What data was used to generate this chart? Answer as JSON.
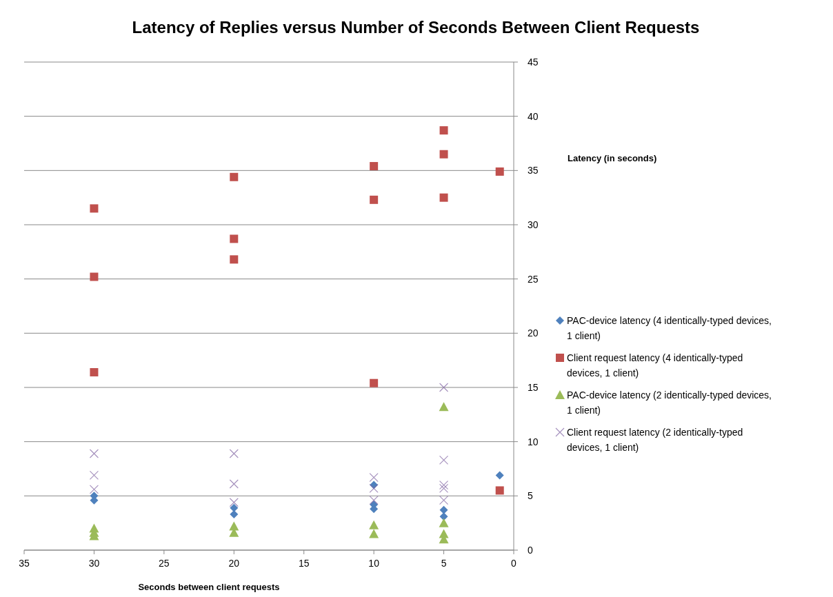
{
  "chart_data": {
    "type": "scatter",
    "title": "Latency of Replies versus Number of Seconds Between Client Requests",
    "xlabel": "Seconds between client  requests",
    "ylabel": "Latency (in seconds)",
    "xlim": [
      35,
      0
    ],
    "xticks": [
      35,
      30,
      25,
      20,
      15,
      10,
      5,
      0
    ],
    "ylim": [
      0,
      45
    ],
    "yticks": [
      0,
      5,
      10,
      15,
      20,
      25,
      30,
      35,
      40,
      45
    ],
    "grid": "y",
    "legend": "right",
    "series": [
      {
        "name": "PAC-device latency (4 identically-typed devices, 1 client)",
        "color": "#4f81bd",
        "marker": "diamond",
        "x": [
          30,
          30,
          20,
          20,
          10,
          10,
          10,
          5,
          5,
          1
        ],
        "values": [
          5.0,
          4.6,
          3.9,
          3.3,
          6.0,
          4.2,
          3.8,
          3.7,
          3.1,
          6.9
        ]
      },
      {
        "name": "Client request latency (4 identically-typed  devices, 1 client)",
        "color": "#c0504d",
        "marker": "square",
        "x": [
          30,
          30,
          30,
          20,
          20,
          20,
          10,
          10,
          10,
          5,
          5,
          5,
          1,
          1
        ],
        "values": [
          31.5,
          25.2,
          16.4,
          34.4,
          28.7,
          26.8,
          35.4,
          32.3,
          15.4,
          38.7,
          36.5,
          32.5,
          34.9,
          5.5
        ]
      },
      {
        "name": "PAC-device latency (2 identically-typed devices, 1 client)",
        "color": "#9bbb59",
        "marker": "triangle",
        "x": [
          30,
          30,
          30,
          20,
          20,
          10,
          10,
          5,
          5,
          5,
          5
        ],
        "values": [
          2.0,
          1.6,
          1.3,
          2.2,
          1.6,
          2.3,
          1.5,
          13.2,
          2.5,
          1.5,
          1.0
        ]
      },
      {
        "name": "Client request latency (2 identically-typed devices, 1 client)",
        "color": "#8064a2",
        "marker": "cross",
        "x": [
          30,
          30,
          30,
          20,
          20,
          20,
          10,
          10,
          10,
          5,
          5,
          5,
          5,
          5
        ],
        "values": [
          8.9,
          6.9,
          5.6,
          8.9,
          6.1,
          4.4,
          6.7,
          5.7,
          4.6,
          15.0,
          8.3,
          6.0,
          5.7,
          4.6
        ]
      }
    ]
  }
}
